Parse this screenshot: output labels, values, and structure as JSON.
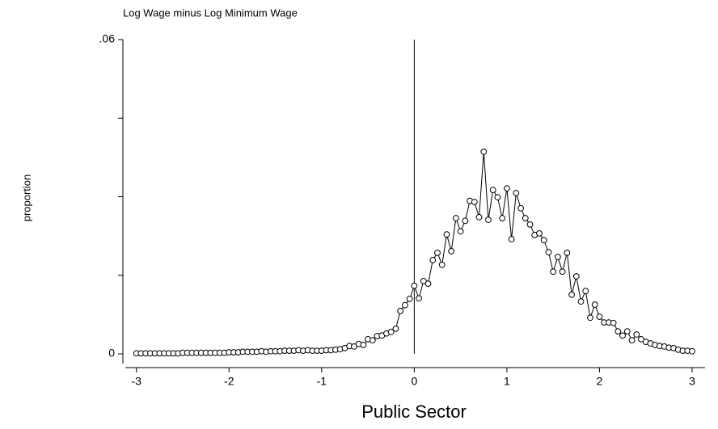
{
  "chart_data": {
    "type": "line",
    "title": "Log Wage minus Log Minimum Wage",
    "xlabel": "Public Sector",
    "ylabel": "proportion",
    "xlim": [
      -3.12,
      3.14
    ],
    "ylim": [
      -0.00185,
      0.06
    ],
    "xticks": [
      -3,
      -2,
      -1,
      0,
      1,
      2,
      3
    ],
    "yticks": [
      0,
      {
        "value": 0.06,
        "label": ".06"
      }
    ],
    "yminor_ticks": [
      0.015,
      0.03,
      0.045
    ],
    "vline": 0,
    "color": "#000000",
    "marker": "circle",
    "x": [
      -3,
      -2.95,
      -2.9,
      -2.85,
      -2.8,
      -2.75,
      -2.7,
      -2.65,
      -2.6,
      -2.55,
      -2.5,
      -2.45,
      -2.4,
      -2.35,
      -2.3,
      -2.25,
      -2.2,
      -2.15,
      -2.1,
      -2.05,
      -2,
      -1.95,
      -1.9,
      -1.85,
      -1.8,
      -1.75,
      -1.7,
      -1.65,
      -1.6,
      -1.55,
      -1.5,
      -1.45,
      -1.4,
      -1.35,
      -1.3,
      -1.25,
      -1.2,
      -1.15,
      -1.1,
      -1.05,
      -1,
      -0.95,
      -0.9,
      -0.85,
      -0.8,
      -0.75,
      -0.7,
      -0.65,
      -0.6,
      -0.55,
      -0.5,
      -0.45,
      -0.4,
      -0.35,
      -0.3,
      -0.25,
      -0.2,
      -0.15,
      -0.1,
      -0.05,
      0,
      0.05,
      0.1,
      0.15,
      0.2,
      0.25,
      0.3,
      0.35,
      0.4,
      0.45,
      0.5,
      0.55,
      0.6,
      0.65,
      0.7,
      0.75,
      0.8,
      0.85,
      0.9,
      0.95,
      1,
      1.05,
      1.1,
      1.15,
      1.2,
      1.25,
      1.3,
      1.35,
      1.4,
      1.45,
      1.5,
      1.55,
      1.6,
      1.65,
      1.7,
      1.75,
      1.8,
      1.85,
      1.9,
      1.95,
      2,
      2.05,
      2.1,
      2.15,
      2.2,
      2.25,
      2.3,
      2.35,
      2.4,
      2.45,
      2.5,
      2.55,
      2.6,
      2.65,
      2.7,
      2.75,
      2.8,
      2.85,
      2.9,
      2.95,
      3
    ],
    "values": [
      0.0001,
      0.0001,
      0.0001,
      0.0001,
      0.0001,
      0.0001,
      0.0001,
      0.0001,
      0.0001,
      0.0001,
      0.0002,
      0.0002,
      0.0002,
      0.0002,
      0.0002,
      0.0002,
      0.0002,
      0.0002,
      0.0002,
      0.0002,
      0.0003,
      0.0003,
      0.0003,
      0.0004,
      0.0004,
      0.0004,
      0.0004,
      0.0005,
      0.0004,
      0.0005,
      0.0005,
      0.0005,
      0.0006,
      0.0006,
      0.0006,
      0.0007,
      0.0006,
      0.0007,
      0.0006,
      0.0006,
      0.0006,
      0.0007,
      0.0007,
      0.0008,
      0.0009,
      0.0011,
      0.0015,
      0.0014,
      0.0019,
      0.0017,
      0.0028,
      0.0026,
      0.0034,
      0.0035,
      0.0039,
      0.0042,
      0.0048,
      0.0082,
      0.0093,
      0.0105,
      0.013,
      0.0106,
      0.0139,
      0.0134,
      0.0179,
      0.0193,
      0.017,
      0.0228,
      0.0196,
      0.0259,
      0.0234,
      0.0254,
      0.0292,
      0.029,
      0.0261,
      0.0386,
      0.0256,
      0.0313,
      0.0299,
      0.0259,
      0.0316,
      0.0219,
      0.0307,
      0.0278,
      0.0259,
      0.0247,
      0.0227,
      0.023,
      0.0217,
      0.0194,
      0.0157,
      0.0185,
      0.0157,
      0.0193,
      0.0113,
      0.0148,
      0.01,
      0.012,
      0.0069,
      0.0094,
      0.0071,
      0.006,
      0.006,
      0.0059,
      0.0043,
      0.0035,
      0.0043,
      0.0026,
      0.0037,
      0.0028,
      0.0023,
      0.002,
      0.0017,
      0.0015,
      0.0014,
      0.0012,
      0.0011,
      0.0008,
      0.0006,
      0.0006,
      0.0005
    ]
  }
}
